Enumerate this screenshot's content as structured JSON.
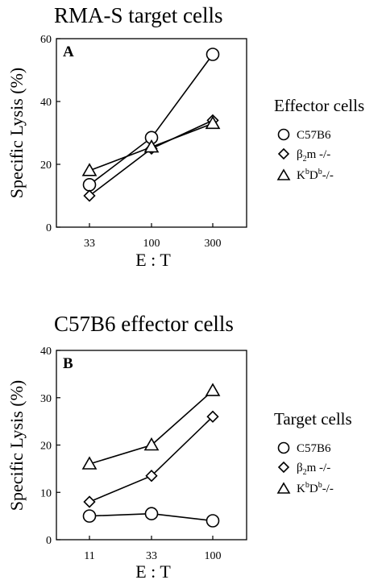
{
  "chart_data": [
    {
      "type": "line",
      "title": "RMA-S target cells",
      "panel_label": "A",
      "xlabel": "E : T",
      "ylabel": "Specific Lysis (%)",
      "categories": [
        "33",
        "100",
        "300"
      ],
      "ylim": [
        0,
        60
      ],
      "yticks": [
        "0",
        "20",
        "40",
        "60"
      ],
      "legend_title": "Effector cells",
      "legend_position": "right",
      "grid": false,
      "series": [
        {
          "name": "C57B6",
          "marker": "circle",
          "values": [
            13.5,
            28.5,
            55
          ]
        },
        {
          "name": "β2m -/-",
          "marker": "diamond",
          "values": [
            10,
            25,
            34
          ]
        },
        {
          "name": "KbDb-/-",
          "marker": "triangle",
          "values": [
            18,
            25.5,
            33
          ]
        }
      ]
    },
    {
      "type": "line",
      "title": "C57B6 effector cells",
      "panel_label": "B",
      "xlabel": "E : T",
      "ylabel": "Specific Lysis (%)",
      "categories": [
        "11",
        "33",
        "100"
      ],
      "ylim": [
        0,
        40
      ],
      "yticks": [
        "0",
        "10",
        "20",
        "30",
        "40"
      ],
      "legend_title": "Target cells",
      "legend_position": "right",
      "grid": false,
      "series": [
        {
          "name": "C57B6",
          "marker": "circle",
          "values": [
            5,
            5.5,
            4
          ]
        },
        {
          "name": "β2m -/-",
          "marker": "diamond",
          "values": [
            8,
            13.5,
            26
          ]
        },
        {
          "name": "KbDb-/-",
          "marker": "triangle",
          "values": [
            16,
            20,
            31.5
          ]
        }
      ]
    }
  ],
  "legend_labels": {
    "c57b6": "C57B6",
    "b2m_prefix": "β",
    "b2m_sub": "2",
    "b2m_suffix": "m -/-",
    "kbdb_k": "K",
    "kbdb_sup1": "b",
    "kbdb_d": "D",
    "kbdb_sup2": "b",
    "kbdb_suffix": "-/-"
  }
}
